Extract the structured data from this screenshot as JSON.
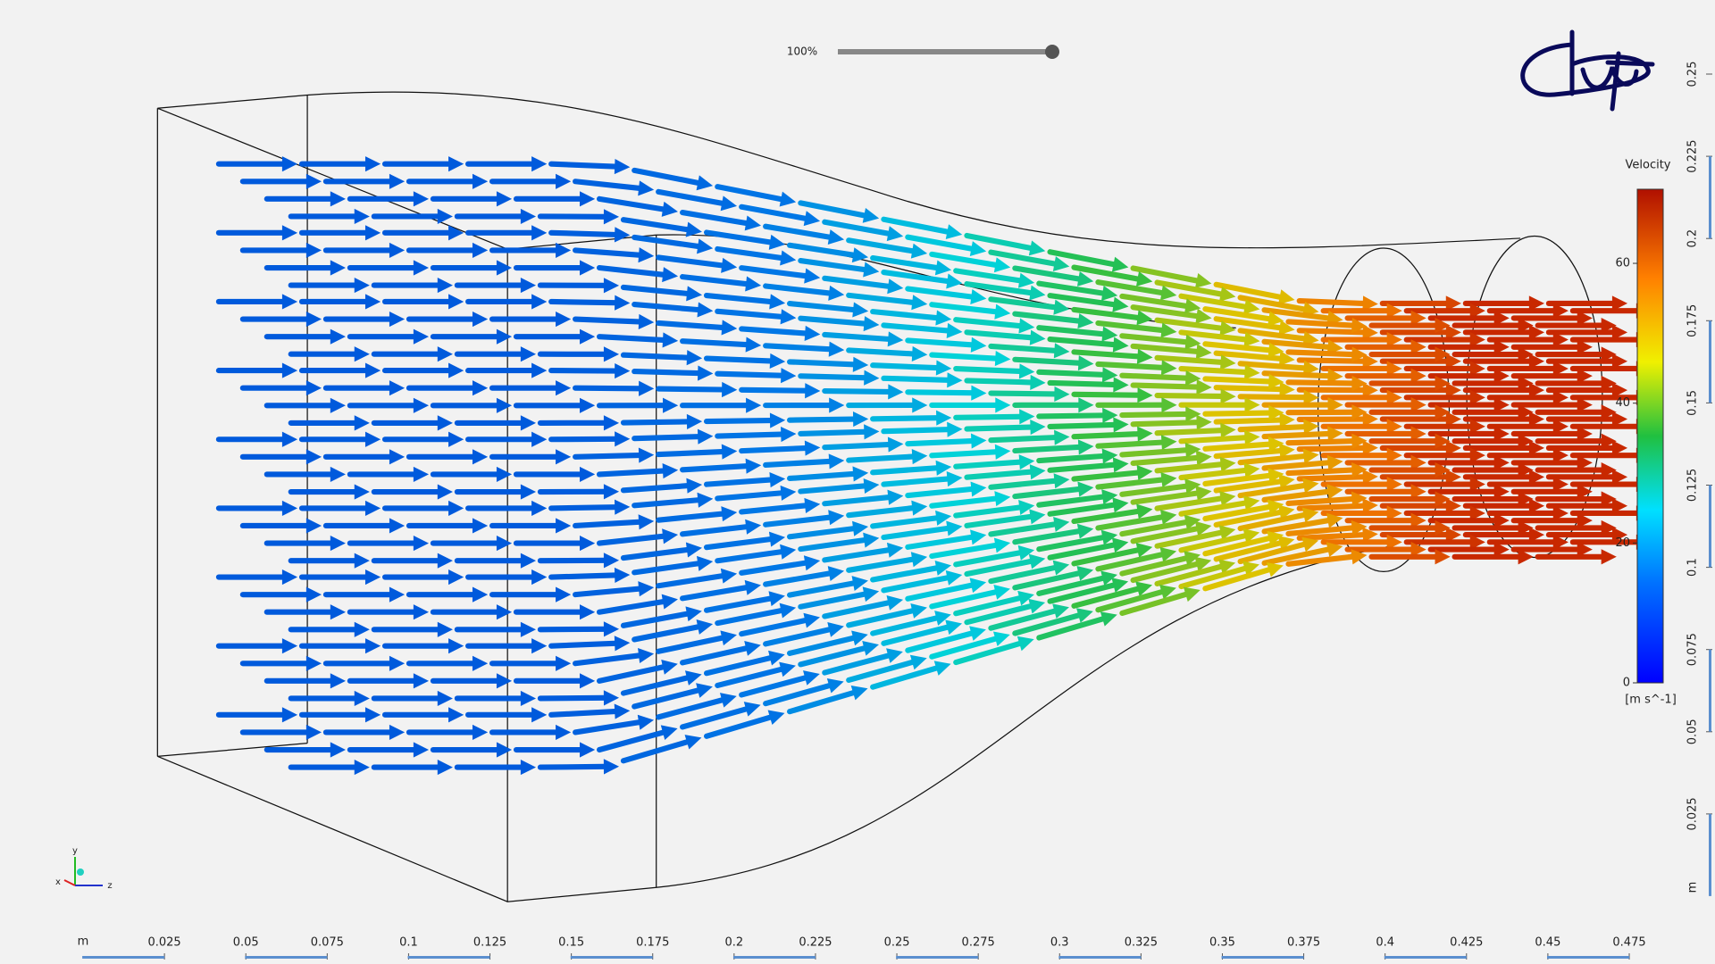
{
  "zoom": {
    "label": "100%"
  },
  "legend": {
    "title": "Velocity",
    "unit": "[m s^-1]",
    "range": [
      0,
      70.6
    ],
    "ticks": [
      0,
      20,
      40,
      60
    ]
  },
  "ruler_bottom": {
    "unit": "m",
    "range": [
      0,
      0.475
    ],
    "ticks": [
      0.025,
      0.05,
      0.075,
      0.1,
      0.125,
      0.15,
      0.175,
      0.2,
      0.225,
      0.25,
      0.275,
      0.3,
      0.325,
      0.35,
      0.375,
      0.4,
      0.425,
      0.45,
      0.475
    ]
  },
  "ruler_right": {
    "unit": "m",
    "range": [
      0,
      0.25
    ],
    "ticks": [
      0.025,
      0.05,
      0.075,
      0.1,
      0.125,
      0.15,
      0.175,
      0.2,
      0.225,
      0.25
    ]
  },
  "triad": {
    "y": "y",
    "x": "x",
    "z": "z"
  }
}
